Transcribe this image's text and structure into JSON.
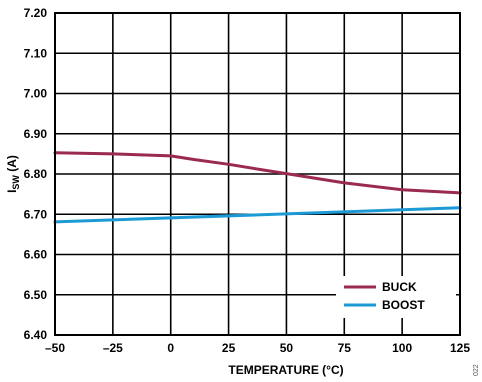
{
  "chart_data": {
    "type": "line",
    "title": "",
    "xlabel": "TEMPERATURE (°C)",
    "ylabel_main": "I",
    "ylabel_sub": "SW",
    "ylabel_unit": " (A)",
    "xlim": [
      -50,
      125
    ],
    "ylim": [
      6.4,
      7.2
    ],
    "x_ticks": [
      -50,
      -25,
      0,
      25,
      50,
      75,
      100,
      125
    ],
    "x_tick_labels": [
      "–50",
      "–25",
      "0",
      "25",
      "50",
      "75",
      "100",
      "125"
    ],
    "y_ticks": [
      6.4,
      6.5,
      6.6,
      6.7,
      6.8,
      6.9,
      7.0,
      7.1,
      7.2
    ],
    "y_tick_labels": [
      "6.40",
      "6.50",
      "6.60",
      "6.70",
      "6.80",
      "6.90",
      "7.00",
      "7.10",
      "7.20"
    ],
    "grid": true,
    "legend_position": "bottom-right",
    "series": [
      {
        "name": "BUCK",
        "color": "#9b2a4f",
        "x": [
          -50,
          -25,
          0,
          10,
          25,
          40,
          50,
          75,
          100,
          125
        ],
        "values": [
          6.853,
          6.85,
          6.845,
          6.836,
          6.824,
          6.81,
          6.801,
          6.778,
          6.761,
          6.753
        ]
      },
      {
        "name": "BOOST",
        "color": "#1b9ad6",
        "x": [
          -50,
          125
        ],
        "values": [
          6.681,
          6.716
        ]
      }
    ],
    "figure_id": "022"
  }
}
